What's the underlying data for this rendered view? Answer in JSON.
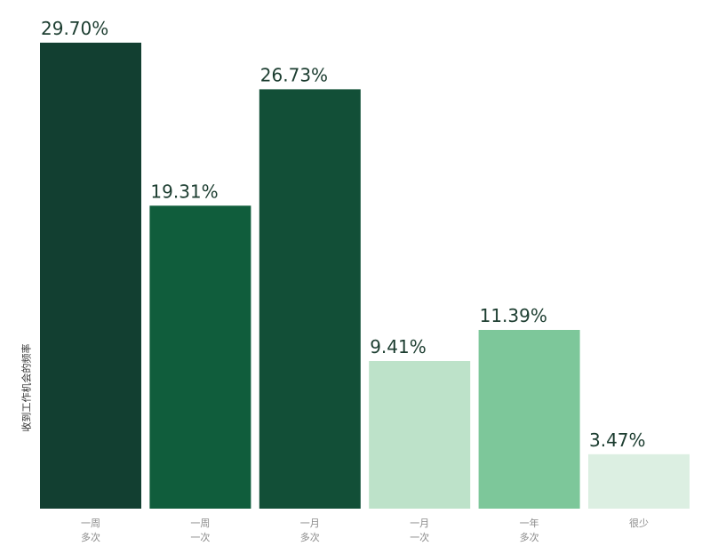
{
  "chart_data": {
    "type": "bar",
    "title": "",
    "xlabel": "",
    "ylabel": "收到工作机会的频率",
    "ylim": [
      0,
      29.7
    ],
    "categories": [
      {
        "line1": "一周",
        "line2": "多次"
      },
      {
        "line1": "一周",
        "line2": "一次"
      },
      {
        "line1": "一月",
        "line2": "多次"
      },
      {
        "line1": "一月",
        "line2": "一次"
      },
      {
        "line1": "一年",
        "line2": "多次"
      },
      {
        "line1": "很少",
        "line2": ""
      }
    ],
    "values": [
      29.7,
      19.31,
      26.73,
      9.41,
      11.39,
      3.47
    ],
    "value_labels": [
      "29.70%",
      "19.31%",
      "26.73%",
      "9.41%",
      "11.39%",
      "3.47%"
    ],
    "bar_colors": [
      "#123f31",
      "#105d3c",
      "#124f37",
      "#bde2c9",
      "#7dc79a",
      "#dcefe2"
    ],
    "grid": false,
    "legend": "none"
  }
}
